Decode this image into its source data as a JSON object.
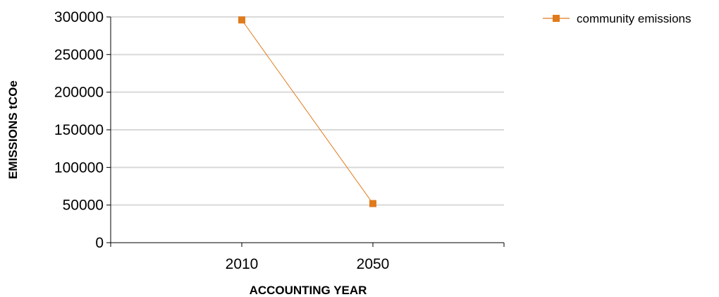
{
  "chart_data": {
    "type": "line",
    "categories": [
      "2010",
      "2050"
    ],
    "series": [
      {
        "name": "community emissions",
        "values": [
          296000,
          52000
        ],
        "color": "#E07B1C"
      }
    ],
    "xlabel": "ACCOUNTING YEAR",
    "ylabel": "EMISSIONS tCOe",
    "ylim": [
      0,
      300000
    ],
    "yticks": [
      0,
      50000,
      100000,
      150000,
      200000,
      250000,
      300000
    ],
    "grid": true,
    "gridColor": "#D9D9D9",
    "legend": "top-right",
    "marker": "square"
  }
}
